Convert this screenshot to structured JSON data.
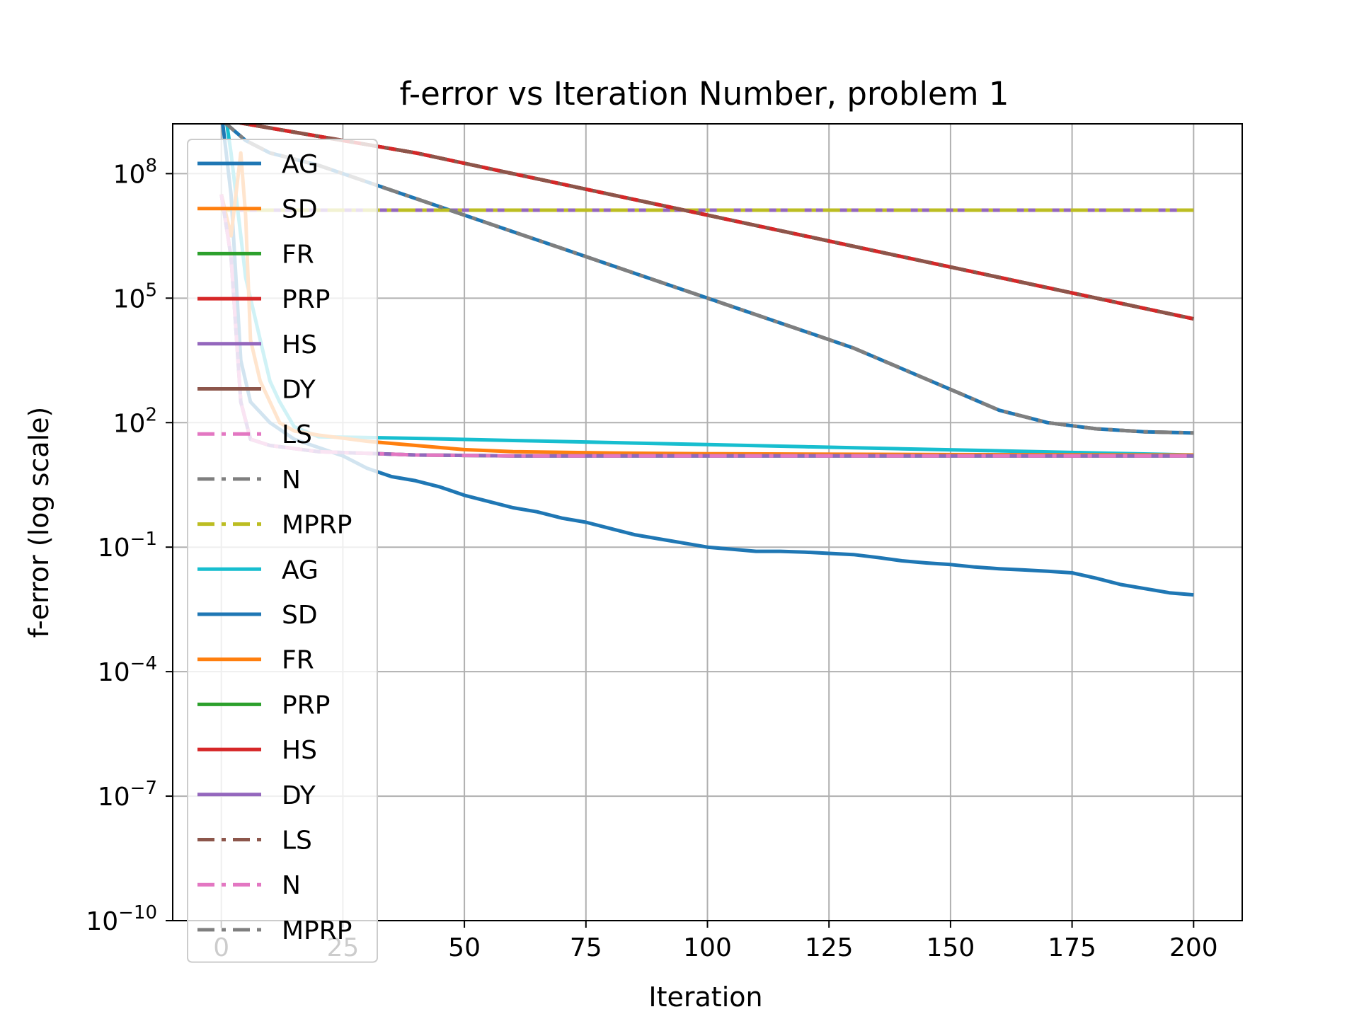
{
  "chart_data": {
    "type": "line",
    "title": "f-error vs Iteration Number, problem 1",
    "xlabel": "Iteration",
    "ylabel": "f-error (log scale)",
    "yscale": "log",
    "xlim": [
      -10,
      210
    ],
    "ylim_exp": [
      -10,
      9.2
    ],
    "x_ticks": [
      {
        "v": 0,
        "label": "0"
      },
      {
        "v": 25,
        "label": "25"
      },
      {
        "v": 50,
        "label": "50"
      },
      {
        "v": 75,
        "label": "75"
      },
      {
        "v": 100,
        "label": "100"
      },
      {
        "v": 125,
        "label": "125"
      },
      {
        "v": 150,
        "label": "150"
      },
      {
        "v": 175,
        "label": "175"
      },
      {
        "v": 200,
        "label": "200"
      }
    ],
    "y_ticks": [
      {
        "v": 8,
        "base": "10",
        "exp": "8"
      },
      {
        "v": 5,
        "base": "10",
        "exp": "5"
      },
      {
        "v": 2,
        "base": "10",
        "exp": "2"
      },
      {
        "v": -1,
        "base": "10",
        "exp": "−1"
      },
      {
        "v": -4,
        "base": "10",
        "exp": "−4"
      },
      {
        "v": -7,
        "base": "10",
        "exp": "−7"
      },
      {
        "v": -10,
        "base": "10",
        "exp": "−10"
      }
    ],
    "grid": true,
    "legend_position": "upper-left",
    "series": [
      {
        "name": "AG",
        "color": "#1f77b4",
        "dash": "solid",
        "x": [
          0,
          5,
          10,
          20,
          30,
          40,
          50,
          60,
          70,
          80,
          90,
          100,
          110,
          120,
          130,
          140,
          150,
          160,
          170,
          180,
          190,
          200
        ],
        "y_log": [
          9.3,
          8.8,
          8.5,
          8.2,
          7.8,
          7.4,
          7.0,
          6.6,
          6.2,
          5.8,
          5.4,
          5.0,
          4.6,
          4.2,
          3.8,
          3.3,
          2.8,
          2.3,
          2.0,
          1.85,
          1.78,
          1.75
        ]
      },
      {
        "name": "SD",
        "color": "#ff7f0e",
        "dash": "solid",
        "x": [
          0,
          200
        ],
        "y_log": [
          7.12,
          7.12
        ]
      },
      {
        "name": "FR",
        "color": "#2ca02c",
        "dash": "solid",
        "x": [
          0,
          200
        ],
        "y_log": [
          7.12,
          7.12
        ]
      },
      {
        "name": "PRP",
        "color": "#d62728",
        "dash": "solid",
        "x": [
          0,
          10,
          20,
          40,
          60,
          80,
          100,
          120,
          140,
          160,
          180,
          200
        ],
        "y_log": [
          9.3,
          9.1,
          8.9,
          8.5,
          8.0,
          7.5,
          7.0,
          6.5,
          6.0,
          5.5,
          5.0,
          4.5
        ]
      },
      {
        "name": "HS",
        "color": "#9467bd",
        "dash": "solid",
        "x": [
          0,
          200
        ],
        "y_log": [
          7.12,
          7.12
        ]
      },
      {
        "name": "DY",
        "color": "#8c564b",
        "dash": "solid",
        "x": [
          0,
          10,
          20,
          40,
          60,
          80,
          100,
          120,
          140,
          160,
          180,
          200
        ],
        "y_log": [
          9.3,
          9.1,
          8.9,
          8.5,
          8.0,
          7.5,
          7.0,
          6.5,
          6.0,
          5.5,
          5.0,
          4.5
        ]
      },
      {
        "name": "LS",
        "color": "#e377c2",
        "dash": "dashdot",
        "x": [
          0,
          200
        ],
        "y_log": [
          7.12,
          7.12
        ]
      },
      {
        "name": "N",
        "color": "#7f7f7f",
        "dash": "dashdot",
        "x": [
          0,
          5,
          10,
          20,
          30,
          40,
          50,
          60,
          70,
          80,
          90,
          100,
          110,
          120,
          130,
          140,
          150,
          160,
          170,
          180,
          190,
          200
        ],
        "y_log": [
          9.3,
          8.8,
          8.5,
          8.2,
          7.8,
          7.4,
          7.0,
          6.6,
          6.2,
          5.8,
          5.4,
          5.0,
          4.6,
          4.2,
          3.8,
          3.3,
          2.8,
          2.3,
          2.0,
          1.85,
          1.78,
          1.75
        ]
      },
      {
        "name": "MPRP",
        "color": "#bcbd22",
        "dash": "dashdot",
        "x": [
          0,
          200
        ],
        "y_log": [
          7.12,
          7.12
        ]
      },
      {
        "name": "AG",
        "color": "#17becf",
        "dash": "solid",
        "x": [
          0,
          1,
          2,
          3,
          4,
          5,
          8,
          10,
          12,
          15,
          20,
          40,
          60,
          80,
          100,
          120,
          140,
          160,
          180,
          200
        ],
        "y_log": [
          9.5,
          9.3,
          8.5,
          7.5,
          6.5,
          5.5,
          4.0,
          3.0,
          2.5,
          1.9,
          1.66,
          1.62,
          1.57,
          1.52,
          1.47,
          1.42,
          1.37,
          1.32,
          1.27,
          1.22
        ]
      },
      {
        "name": "SD",
        "color": "#1f77b4",
        "dash": "solid",
        "x": [
          0,
          2,
          4,
          6,
          10,
          15,
          20,
          25,
          30,
          35,
          40,
          45,
          50,
          55,
          60,
          65,
          70,
          75,
          80,
          85,
          90,
          95,
          100,
          105,
          110,
          115,
          120,
          125,
          130,
          135,
          140,
          145,
          150,
          155,
          160,
          165,
          170,
          175,
          180,
          185,
          190,
          195,
          200
        ],
        "y_log": [
          9.5,
          7.5,
          3.5,
          2.5,
          2.0,
          1.6,
          1.4,
          1.2,
          0.9,
          0.7,
          0.6,
          0.45,
          0.25,
          0.1,
          -0.05,
          -0.15,
          -0.3,
          -0.4,
          -0.55,
          -0.7,
          -0.8,
          -0.9,
          -1.0,
          -1.05,
          -1.1,
          -1.1,
          -1.12,
          -1.15,
          -1.18,
          -1.25,
          -1.33,
          -1.38,
          -1.42,
          -1.48,
          -1.52,
          -1.55,
          -1.58,
          -1.62,
          -1.75,
          -1.9,
          -2.0,
          -2.1,
          -2.15
        ]
      },
      {
        "name": "FR",
        "color": "#ff7f0e",
        "dash": "solid",
        "x": [
          0,
          2,
          4,
          5,
          6,
          8,
          10,
          12,
          15,
          20,
          30,
          40,
          50,
          60,
          80,
          100,
          150,
          200
        ],
        "y_log": [
          7.5,
          6.5,
          8.5,
          7.0,
          4.0,
          3.0,
          2.5,
          2.0,
          1.8,
          1.7,
          1.55,
          1.45,
          1.35,
          1.3,
          1.27,
          1.25,
          1.23,
          1.22
        ]
      },
      {
        "name": "PRP",
        "color": "#2ca02c",
        "dash": "solid",
        "x": [
          0,
          2,
          4,
          6,
          10,
          20,
          40,
          60,
          100,
          150,
          200
        ],
        "y_log": [
          7.5,
          6.0,
          2.5,
          1.6,
          1.45,
          1.3,
          1.22,
          1.2,
          1.2,
          1.2,
          1.2
        ]
      },
      {
        "name": "HS",
        "color": "#d62728",
        "dash": "solid",
        "x": [
          0,
          10,
          20,
          40,
          60,
          80,
          100,
          120,
          140,
          160,
          180,
          200
        ],
        "y_log": [
          9.3,
          9.1,
          8.9,
          8.5,
          8.0,
          7.5,
          7.0,
          6.5,
          6.0,
          5.5,
          5.0,
          4.5
        ]
      },
      {
        "name": "DY",
        "color": "#9467bd",
        "dash": "solid",
        "x": [
          0,
          2,
          4,
          6,
          10,
          20,
          40,
          60,
          100,
          150,
          200
        ],
        "y_log": [
          7.5,
          6.0,
          2.5,
          1.6,
          1.45,
          1.3,
          1.22,
          1.2,
          1.2,
          1.2,
          1.2
        ]
      },
      {
        "name": "LS",
        "color": "#8c564b",
        "dash": "dashdot",
        "x": [
          0,
          10,
          20,
          40,
          60,
          80,
          100,
          120,
          140,
          160,
          180,
          200
        ],
        "y_log": [
          9.3,
          9.1,
          8.9,
          8.5,
          8.0,
          7.5,
          7.0,
          6.5,
          6.0,
          5.5,
          5.0,
          4.5
        ]
      },
      {
        "name": "N",
        "color": "#e377c2",
        "dash": "dashdot",
        "x": [
          0,
          2,
          4,
          6,
          10,
          20,
          40,
          60,
          100,
          150,
          200
        ],
        "y_log": [
          7.5,
          6.0,
          2.5,
          1.6,
          1.45,
          1.3,
          1.22,
          1.2,
          1.2,
          1.2,
          1.2
        ]
      },
      {
        "name": "MPRP",
        "color": "#7f7f7f",
        "dash": "dashdot",
        "x": [
          0,
          5,
          10,
          20,
          30,
          40,
          50,
          60,
          70,
          80,
          90,
          100,
          110,
          120,
          130,
          140,
          150,
          160,
          170,
          180,
          190,
          200
        ],
        "y_log": [
          9.3,
          8.8,
          8.5,
          8.2,
          7.8,
          7.4,
          7.0,
          6.6,
          6.2,
          5.8,
          5.4,
          5.0,
          4.6,
          4.2,
          3.8,
          3.3,
          2.8,
          2.3,
          2.0,
          1.85,
          1.78,
          1.75
        ]
      }
    ]
  }
}
